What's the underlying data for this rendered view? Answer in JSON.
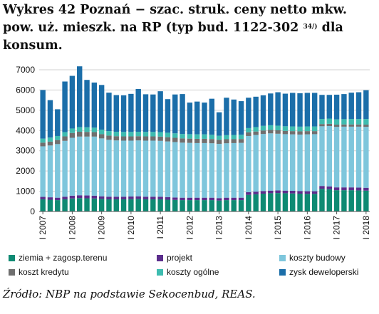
{
  "title": {
    "main": "Wykres 42 Poznań − szac. struk. ceny netto mkw. pow. uż. mieszk. na RP (typ bud. 1122-302",
    "superscript": "34/)",
    "tail": "dla konsum."
  },
  "source": "Źródło: NBP na podstawie Sekocenbud, REAS.",
  "chart_data": {
    "type": "bar",
    "stacked": true,
    "ylim": [
      0,
      7000
    ],
    "yticks": [
      0,
      1000,
      2000,
      3000,
      4000,
      5000,
      6000,
      7000
    ],
    "year_labels": [
      "I 2007",
      "I 2008",
      "I 2009",
      "I 2010",
      "I 2011",
      "I 2012",
      "I 2013",
      "I 2014",
      "I 2015",
      "I 2016",
      "I 2017",
      "I 2018"
    ],
    "quarters_per_year": 4,
    "series": [
      {
        "name": "ziemia + zagosp.terenu",
        "color": "#0e8a73",
        "values": [
          600,
          580,
          560,
          600,
          640,
          660,
          650,
          640,
          620,
          600,
          600,
          600,
          610,
          620,
          600,
          600,
          600,
          580,
          570,
          560,
          560,
          560,
          560,
          560,
          540,
          560,
          560,
          560,
          820,
          850,
          880,
          900,
          910,
          900,
          890,
          880,
          870,
          870,
          1120,
          1100,
          1050,
          1050,
          1050,
          1040,
          1030
        ]
      },
      {
        "name": "projekt",
        "color": "#5b2d8c",
        "values": [
          120,
          120,
          120,
          130,
          140,
          140,
          140,
          140,
          130,
          130,
          130,
          130,
          130,
          130,
          130,
          130,
          130,
          130,
          120,
          120,
          120,
          120,
          120,
          120,
          120,
          120,
          120,
          120,
          130,
          130,
          130,
          130,
          130,
          130,
          130,
          130,
          130,
          130,
          140,
          140,
          140,
          140,
          140,
          140,
          140
        ]
      },
      {
        "name": "koszty budowy",
        "color": "#7ec6dc",
        "values": [
          2500,
          2560,
          2650,
          2760,
          2860,
          2900,
          2910,
          2920,
          2860,
          2810,
          2780,
          2770,
          2760,
          2760,
          2770,
          2770,
          2760,
          2750,
          2740,
          2720,
          2710,
          2700,
          2700,
          2690,
          2680,
          2690,
          2700,
          2710,
          2780,
          2800,
          2820,
          2830,
          2800,
          2790,
          2790,
          2790,
          2810,
          2820,
          2950,
          2980,
          2990,
          3000,
          3000,
          3010,
          3010
        ]
      },
      {
        "name": "koszt kredytu",
        "color": "#6f6f6f",
        "values": [
          180,
          190,
          200,
          220,
          240,
          240,
          230,
          220,
          210,
          210,
          210,
          210,
          210,
          210,
          210,
          210,
          210,
          210,
          210,
          210,
          210,
          210,
          210,
          210,
          200,
          200,
          190,
          190,
          180,
          170,
          170,
          170,
          170,
          160,
          160,
          160,
          160,
          150,
          110,
          110,
          110,
          110,
          110,
          110,
          110
        ]
      },
      {
        "name": "koszty ogólne",
        "color": "#3ebcb0",
        "values": [
          200,
          200,
          200,
          210,
          220,
          230,
          230,
          220,
          220,
          220,
          220,
          220,
          220,
          220,
          220,
          220,
          220,
          220,
          220,
          220,
          220,
          220,
          220,
          210,
          200,
          200,
          210,
          210,
          210,
          220,
          230,
          230,
          230,
          230,
          230,
          230,
          230,
          230,
          250,
          260,
          260,
          260,
          270,
          270,
          280
        ]
      },
      {
        "name": "zysk deweloperski",
        "color": "#1b6ea9",
        "values": [
          2400,
          1850,
          1320,
          2500,
          2600,
          3000,
          2340,
          2230,
          2210,
          1900,
          1810,
          1810,
          1880,
          2110,
          1860,
          1850,
          2020,
          1660,
          1920,
          1970,
          1560,
          1620,
          1570,
          1780,
          1160,
          1850,
          1750,
          1660,
          1500,
          1500,
          1510,
          1570,
          1650,
          1610,
          1660,
          1650,
          1660,
          1660,
          1190,
          1170,
          1220,
          1240,
          1300,
          1320,
          1420
        ]
      }
    ],
    "legend_position": "bottom",
    "grid": "horizontal"
  }
}
